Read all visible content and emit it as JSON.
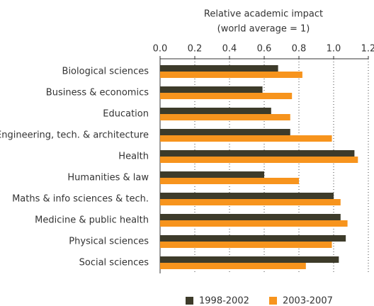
{
  "chart_data": {
    "type": "hbar",
    "title": "Relative academic impact",
    "subtitle": "(world average = 1)",
    "categories": [
      "Biological sciences",
      "Business & economics",
      "Education",
      "Engineering, tech. & architecture",
      "Health",
      "Humanities & law",
      "Maths & info sciences & tech.",
      "Medicine & public health",
      "Physical sciences",
      "Social sciences"
    ],
    "series": [
      {
        "name": "1998-2002",
        "color": "#3d3b2a",
        "values": [
          0.68,
          0.59,
          0.64,
          0.75,
          1.12,
          0.6,
          1.0,
          1.04,
          1.07,
          1.03
        ]
      },
      {
        "name": "2003-2007",
        "color": "#f7941d",
        "values": [
          0.82,
          0.76,
          0.75,
          0.99,
          1.14,
          0.8,
          1.04,
          1.08,
          0.99,
          0.84
        ]
      }
    ],
    "xlim": [
      0,
      1.2
    ],
    "xticks": [
      {
        "value": 0,
        "label": "0.0"
      },
      0.2,
      0.4,
      0.6,
      0.8,
      {
        "value": 1,
        "label": "1.0"
      },
      1.2
    ],
    "grid": true,
    "legend": "bottom"
  }
}
